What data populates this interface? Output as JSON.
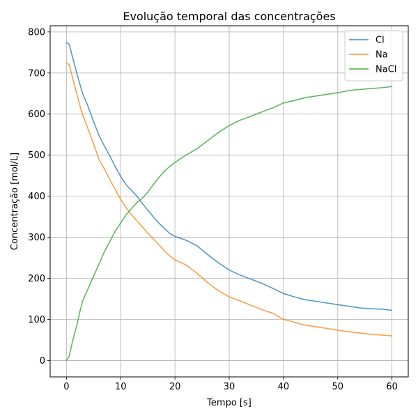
{
  "chart_data": {
    "type": "line",
    "title": "Evolução temporal das concentrações",
    "xlabel": "Tempo [s]",
    "ylabel": "Concentração [mol/L]",
    "xlim": [
      -3,
      63
    ],
    "ylim": [
      -40,
      815
    ],
    "xticks": [
      0,
      10,
      20,
      30,
      40,
      50,
      60
    ],
    "yticks": [
      0,
      100,
      200,
      300,
      400,
      500,
      600,
      700,
      800
    ],
    "grid": true,
    "legend_position": "top-right",
    "series": [
      {
        "name": "Cl",
        "color": "#1f77b4",
        "x": [
          0,
          0.5,
          1,
          1.5,
          2,
          2.5,
          3,
          4,
          5,
          6,
          7,
          8,
          9,
          10,
          11,
          12,
          13,
          14,
          15,
          16,
          17,
          18,
          19,
          20,
          22,
          24,
          26,
          28,
          30,
          32,
          34,
          36,
          38,
          40,
          42,
          44,
          46,
          48,
          50,
          52,
          54,
          56,
          58,
          60
        ],
        "values": [
          775,
          770,
          745,
          720,
          695,
          672,
          650,
          618,
          582,
          548,
          522,
          498,
          472,
          448,
          428,
          414,
          400,
          382,
          366,
          350,
          335,
          322,
          310,
          302,
          293,
          280,
          258,
          238,
          220,
          208,
          198,
          188,
          176,
          163,
          155,
          148,
          144,
          140,
          136,
          132,
          128,
          126,
          125,
          122
        ]
      },
      {
        "name": "Na",
        "color": "#ff7f0e",
        "x": [
          0,
          0.5,
          1,
          1.5,
          2,
          2.5,
          3,
          4,
          5,
          6,
          7,
          8,
          9,
          10,
          11,
          12,
          13,
          14,
          15,
          16,
          17,
          18,
          19,
          20,
          22,
          24,
          26,
          28,
          30,
          32,
          34,
          36,
          38,
          40,
          42,
          44,
          46,
          48,
          50,
          52,
          54,
          56,
          58,
          60
        ],
        "values": [
          725,
          720,
          695,
          670,
          645,
          620,
          598,
          563,
          528,
          490,
          466,
          440,
          416,
          392,
          372,
          355,
          340,
          325,
          310,
          296,
          282,
          268,
          255,
          245,
          233,
          213,
          190,
          170,
          155,
          145,
          134,
          124,
          115,
          100,
          93,
          86,
          82,
          78,
          74,
          70,
          67,
          64,
          62,
          60
        ]
      },
      {
        "name": "NaCl",
        "color": "#2ca02c",
        "x": [
          0,
          0.5,
          1,
          1.5,
          2,
          2.5,
          3,
          4,
          5,
          6,
          7,
          8,
          9,
          10,
          11,
          12,
          13,
          14,
          15,
          16,
          17,
          18,
          19,
          20,
          22,
          24,
          26,
          28,
          30,
          32,
          34,
          36,
          38,
          40,
          42,
          44,
          46,
          48,
          50,
          52,
          54,
          56,
          58,
          60
        ],
        "values": [
          0,
          10,
          40,
          65,
          90,
          120,
          145,
          175,
          205,
          235,
          265,
          290,
          315,
          335,
          355,
          370,
          385,
          395,
          410,
          428,
          445,
          460,
          472,
          482,
          500,
          515,
          535,
          555,
          572,
          585,
          595,
          605,
          615,
          627,
          633,
          640,
          644,
          648,
          652,
          657,
          660,
          662,
          664,
          667
        ]
      }
    ]
  }
}
